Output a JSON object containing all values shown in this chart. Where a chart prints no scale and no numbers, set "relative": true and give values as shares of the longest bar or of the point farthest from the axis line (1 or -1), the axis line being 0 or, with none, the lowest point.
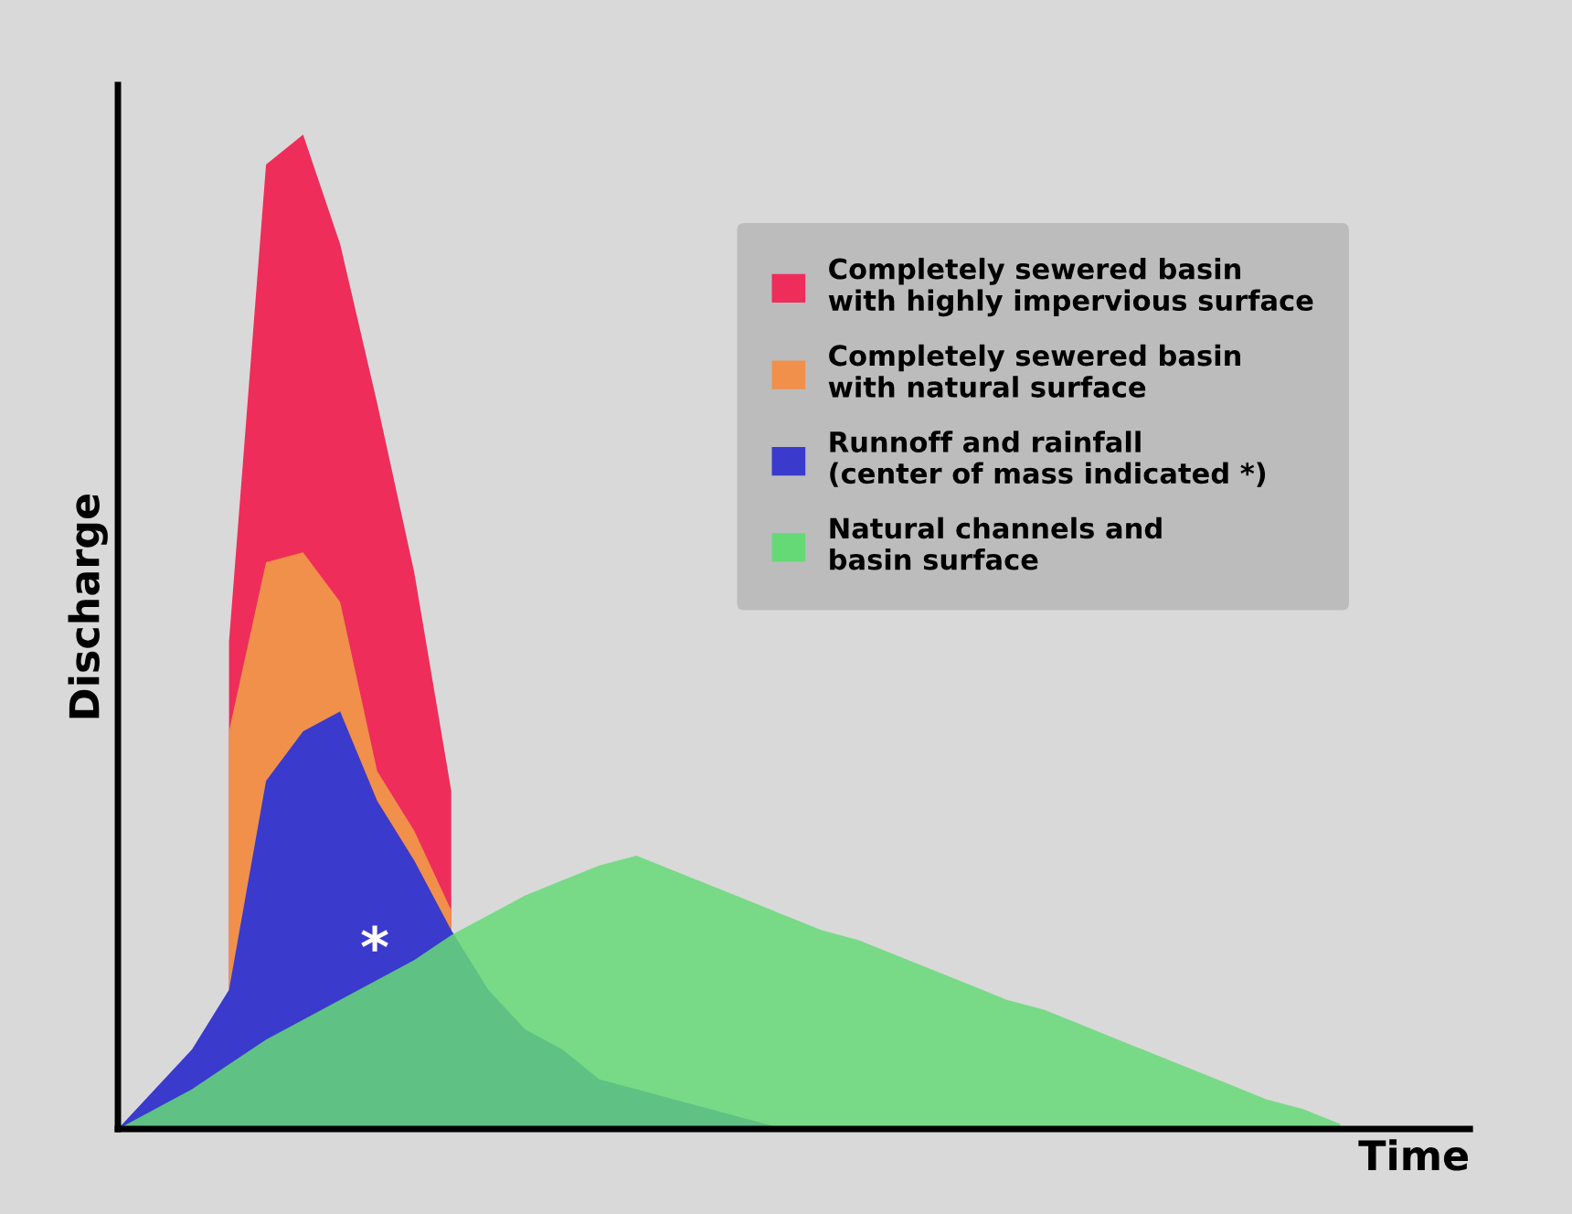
{
  "chart_data": {
    "type": "area",
    "relative": true,
    "xlabel": "Time",
    "ylabel": "Discharge",
    "legend": "top right",
    "grid": false,
    "tick_labels": false,
    "categories": [
      null,
      null,
      null,
      null,
      null,
      null,
      null,
      null,
      null,
      null,
      null,
      null,
      null,
      null,
      null,
      null,
      null,
      null,
      null,
      null,
      null,
      null,
      null,
      null,
      null,
      null,
      null,
      null,
      null,
      null,
      null,
      null,
      null,
      null,
      null,
      null
    ],
    "series": [
      {
        "name": "Completely sewered basin\nwith highly impervious surface",
        "color": "#ee2d5a",
        "values": [
          null,
          null,
          null,
          0.49,
          0.97,
          1.0,
          0.89,
          0.73,
          0.56,
          0.34,
          null,
          null,
          null,
          null,
          null,
          null,
          null,
          null,
          null,
          null,
          null,
          null,
          null,
          null,
          null,
          null,
          null,
          null,
          null,
          null,
          null,
          null,
          null,
          null,
          null,
          null
        ]
      },
      {
        "name": "Completely sewered basin\nwith natural surface",
        "color": "#f0904a",
        "values": [
          null,
          null,
          null,
          0.4,
          0.57,
          0.58,
          0.53,
          0.36,
          0.3,
          0.22,
          null,
          null,
          null,
          null,
          null,
          null,
          null,
          null,
          null,
          null,
          null,
          null,
          null,
          null,
          null,
          null,
          null,
          null,
          null,
          null,
          null,
          null,
          null,
          null,
          null,
          null
        ]
      },
      {
        "name": "Runnoff and rainfall\n(center of mass indicated *)",
        "color": "#3a3acc",
        "values": [
          0,
          0.04,
          0.08,
          0.14,
          0.35,
          0.4,
          0.42,
          0.33,
          0.27,
          0.2,
          0.14,
          0.1,
          0.08,
          0.05,
          0.04,
          0.03,
          0.02,
          0.01,
          0,
          null,
          null,
          null,
          null,
          null,
          null,
          null,
          null,
          null,
          null,
          null,
          null,
          null,
          null,
          null,
          null,
          null
        ]
      },
      {
        "name": "Natural channels and\nbasin surface",
        "color": "#66d977",
        "values": [
          0,
          0.02,
          0.04,
          0.065,
          0.09,
          0.11,
          0.13,
          0.15,
          0.17,
          0.195,
          0.215,
          0.235,
          0.25,
          0.265,
          0.275,
          0.26,
          0.245,
          0.23,
          0.215,
          0.2,
          0.19,
          0.175,
          0.16,
          0.145,
          0.13,
          0.12,
          0.105,
          0.09,
          0.075,
          0.06,
          0.045,
          0.03,
          0.02,
          0.005,
          null,
          null
        ]
      }
    ],
    "annotations": [
      "*"
    ]
  }
}
